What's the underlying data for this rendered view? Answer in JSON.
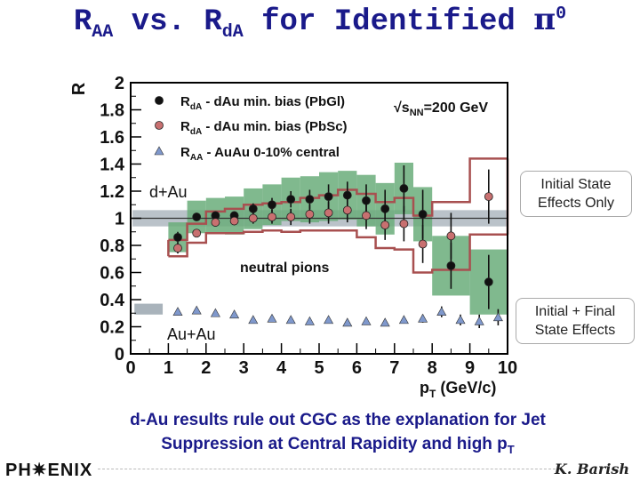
{
  "slide": {
    "title_pre": "R",
    "title_sub1": "AA",
    "title_mid": " vs. R",
    "title_sub2": "dA",
    "title_post": " for Identified ",
    "title_pi": "π",
    "title_sup": "0"
  },
  "notes": {
    "initial": "Initial State Effects Only",
    "final": "Initial + Final State Effects"
  },
  "conclusion": {
    "line1": "d-Au results rule out CGC as the explanation for Jet",
    "line2": "Suppression at Central Rapidity and high p",
    "line2_sub": "T"
  },
  "footer": {
    "logo": "PH✷ENIX",
    "author": "K. Barish"
  },
  "chart_data": {
    "type": "scatter",
    "ylabel": "R",
    "xlabel": "p",
    "xlabel_sub": "T",
    "xlabel_unit": " (GeV/c)",
    "xlim": [
      0,
      10
    ],
    "ylim": [
      0,
      2
    ],
    "xticks": [
      "0",
      "1",
      "2",
      "3",
      "4",
      "5",
      "6",
      "7",
      "8",
      "9",
      "10"
    ],
    "yticks": [
      "0",
      "0.2",
      "0.4",
      "0.6",
      "0.8",
      "1",
      "1.2",
      "1.4",
      "1.6",
      "1.8",
      "2"
    ],
    "energy_label": "√s",
    "energy_sub": "NN",
    "energy_value": "=200 GeV",
    "annotations": {
      "dau": "d+Au",
      "auau": "Au+Au",
      "neutral": "neutral pions"
    },
    "reference_line": 1.0,
    "band_normalization_dau": {
      "y": 1.0,
      "half_width": 0.06
    },
    "band_normalization_auau": {
      "y": 0.33,
      "half_width": 0.04
    },
    "colors": {
      "pbgl": "#111111",
      "pbsc": "#c87070",
      "auau": "#7f98cc",
      "syst_fill": "#6aad7a",
      "syst_box": "#a85050",
      "norm_band": "#a9b3bb"
    },
    "series": [
      {
        "name_main": "R",
        "name_sub": "dA",
        "name_rest": " - dAu min. bias (PbGl)",
        "marker": "circle",
        "x": [
          1.25,
          1.75,
          2.25,
          2.75,
          3.25,
          3.75,
          4.25,
          4.75,
          5.25,
          5.75,
          6.25,
          6.75,
          7.25,
          7.75,
          8.5,
          9.5
        ],
        "y": [
          0.86,
          1.01,
          1.02,
          1.02,
          1.07,
          1.1,
          1.14,
          1.14,
          1.16,
          1.17,
          1.13,
          1.07,
          1.22,
          1.03,
          0.65,
          0.53
        ],
        "err": [
          0.04,
          0.03,
          0.03,
          0.03,
          0.04,
          0.05,
          0.06,
          0.07,
          0.09,
          0.1,
          0.12,
          0.14,
          0.17,
          0.18,
          0.17,
          0.2
        ],
        "syst": [
          0.11,
          0.12,
          0.13,
          0.14,
          0.15,
          0.15,
          0.16,
          0.17,
          0.18,
          0.18,
          0.19,
          0.19,
          0.19,
          0.2,
          0.22,
          0.24
        ]
      },
      {
        "name_main": "R",
        "name_sub": "dA",
        "name_rest": " - dAu min. bias (PbSc)",
        "marker": "circle",
        "x": [
          1.25,
          1.75,
          2.25,
          2.75,
          3.25,
          3.75,
          4.25,
          4.75,
          5.25,
          5.75,
          6.25,
          6.75,
          7.25,
          7.75,
          8.5,
          9.5
        ],
        "y": [
          0.78,
          0.89,
          0.97,
          0.98,
          1.0,
          1.01,
          1.01,
          1.03,
          1.04,
          1.06,
          1.02,
          0.95,
          0.96,
          0.81,
          0.87,
          1.16
        ],
        "err": [
          0.04,
          0.03,
          0.03,
          0.03,
          0.04,
          0.05,
          0.06,
          0.07,
          0.08,
          0.09,
          0.1,
          0.11,
          0.13,
          0.14,
          0.17,
          0.2
        ],
        "syst": [
          0.06,
          0.07,
          0.08,
          0.09,
          0.1,
          0.1,
          0.11,
          0.12,
          0.13,
          0.15,
          0.16,
          0.17,
          0.19,
          0.21,
          0.25,
          0.28
        ]
      },
      {
        "name_main": "R",
        "name_sub": "AA",
        "name_rest": " - AuAu 0-10% central",
        "marker": "triangle",
        "x": [
          1.25,
          1.75,
          2.25,
          2.75,
          3.25,
          3.75,
          4.25,
          4.75,
          5.25,
          5.75,
          6.25,
          6.75,
          7.25,
          7.75,
          8.25,
          8.75,
          9.25,
          9.75
        ],
        "y": [
          0.31,
          0.32,
          0.3,
          0.29,
          0.25,
          0.26,
          0.25,
          0.24,
          0.25,
          0.23,
          0.24,
          0.23,
          0.25,
          0.26,
          0.31,
          0.25,
          0.24,
          0.27
        ],
        "err": [
          0.02,
          0.02,
          0.02,
          0.02,
          0.02,
          0.02,
          0.02,
          0.02,
          0.02,
          0.02,
          0.02,
          0.02,
          0.02,
          0.03,
          0.04,
          0.04,
          0.05,
          0.06
        ]
      }
    ]
  }
}
